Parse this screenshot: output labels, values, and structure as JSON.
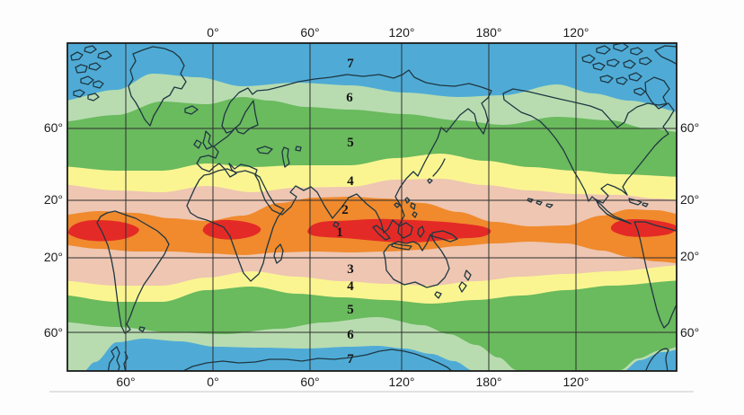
{
  "map": {
    "description": "World map with latitudinal zone bands numbered 1-7 from equator to poles",
    "longitude_labels_top": [
      "0°",
      "60°",
      "120°",
      "180°",
      "120°"
    ],
    "longitude_labels_bottom": [
      "60°",
      "0°",
      "60°",
      "120°",
      "180°",
      "120°"
    ],
    "latitude_labels_left": [
      "60°",
      "20°",
      "20°",
      "60°"
    ],
    "latitude_labels_right": [
      "60°",
      "20°",
      "20°",
      "60°"
    ],
    "zone_numbers": [
      "7",
      "6",
      "5",
      "4",
      "2",
      "1",
      "3",
      "4",
      "5",
      "6",
      "7"
    ],
    "zone_colors": {
      "zone1_red": "#e42a26",
      "zone2_orange": "#f08a2d",
      "zone3_pink": "#eec6b2",
      "zone4_yellow": "#fbf591",
      "zone5_green": "#6aba5e",
      "zone6_pale_green": "#b8dcb0",
      "zone7_blue": "#4fabd6"
    },
    "coastline_color": "#1f3742",
    "grid_color": "#2e2e2e",
    "border_color": "#1b1b1b",
    "separator_color": "#d9d9d9"
  }
}
